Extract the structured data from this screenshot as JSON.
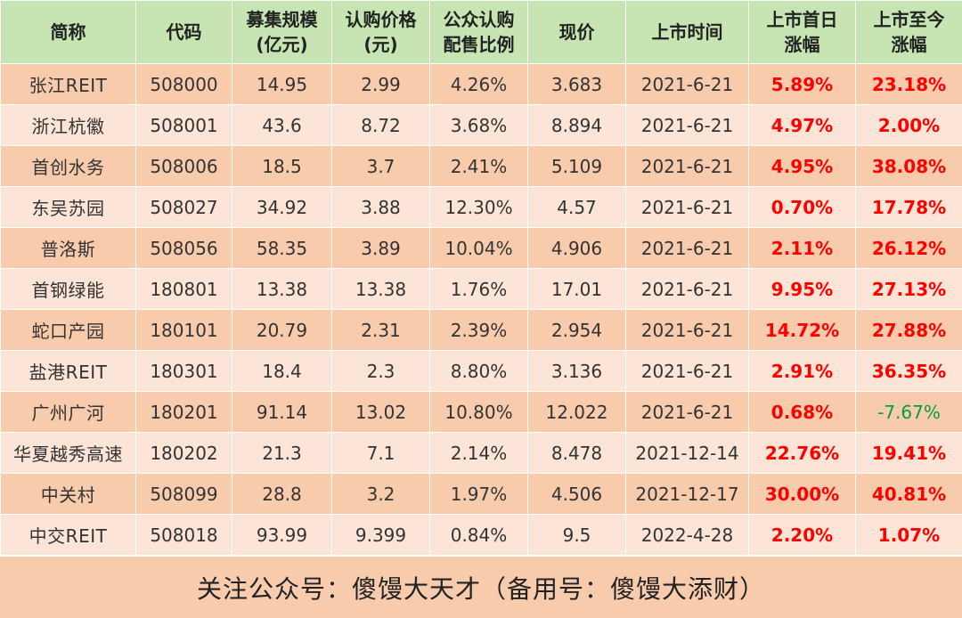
{
  "table": {
    "headers": [
      [
        "简称"
      ],
      [
        "代码"
      ],
      [
        "募集规模",
        "(亿元)"
      ],
      [
        "认购价格",
        "(元)"
      ],
      [
        "公众认购",
        "配售比例"
      ],
      [
        "现价"
      ],
      [
        "上市时间"
      ],
      [
        "上市首日",
        "涨幅"
      ],
      [
        "上市至今",
        "涨幅"
      ]
    ],
    "rows": [
      [
        "张江REIT",
        "508000",
        "14.95",
        "2.99",
        "4.26%",
        "3.683",
        "2021-6-21",
        "5.89%",
        "23.18%"
      ],
      [
        "浙江杭徽",
        "508001",
        "43.6",
        "8.72",
        "3.68%",
        "8.894",
        "2021-6-21",
        "4.97%",
        "2.00%"
      ],
      [
        "首创水务",
        "508006",
        "18.5",
        "3.7",
        "2.41%",
        "5.109",
        "2021-6-21",
        "4.95%",
        "38.08%"
      ],
      [
        "东吴苏园",
        "508027",
        "34.92",
        "3.88",
        "12.30%",
        "4.57",
        "2021-6-21",
        "0.70%",
        "17.78%"
      ],
      [
        "普洛斯",
        "508056",
        "58.35",
        "3.89",
        "10.04%",
        "4.906",
        "2021-6-21",
        "2.11%",
        "26.12%"
      ],
      [
        "首钢绿能",
        "180801",
        "13.38",
        "13.38",
        "1.76%",
        "17.01",
        "2021-6-21",
        "9.95%",
        "27.13%"
      ],
      [
        "蛇口产园",
        "180101",
        "20.79",
        "2.31",
        "2.39%",
        "2.954",
        "2021-6-21",
        "14.72%",
        "27.88%"
      ],
      [
        "盐港REIT",
        "180301",
        "18.4",
        "2.3",
        "8.80%",
        "3.136",
        "2021-6-21",
        "2.91%",
        "36.35%"
      ],
      [
        "广州广河",
        "180201",
        "91.14",
        "13.02",
        "10.80%",
        "12.022",
        "2021-6-21",
        "0.68%",
        "-7.67%"
      ],
      [
        "华夏越秀高速",
        "180202",
        "21.3",
        "7.1",
        "2.14%",
        "8.478",
        "2021-12-14",
        "22.76%",
        "19.41%"
      ],
      [
        "中关村",
        "508099",
        "28.8",
        "3.2",
        "1.97%",
        "4.506",
        "2021-12-17",
        "30.00%",
        "40.81%"
      ],
      [
        "中交REIT",
        "508018",
        "93.99",
        "9.399",
        "0.84%",
        "9.5",
        "2022-4-28",
        "2.20%",
        "1.07%"
      ]
    ]
  },
  "footer": {
    "text": "关注公众号：傻馒大天才（备用号：傻馒大添财）"
  },
  "colors": {
    "header_bg": "#c6e5b3",
    "row_dark": "#f8cbad",
    "row_light": "#fce4d6",
    "positive": "#ff0000",
    "negative": "#00a040"
  }
}
